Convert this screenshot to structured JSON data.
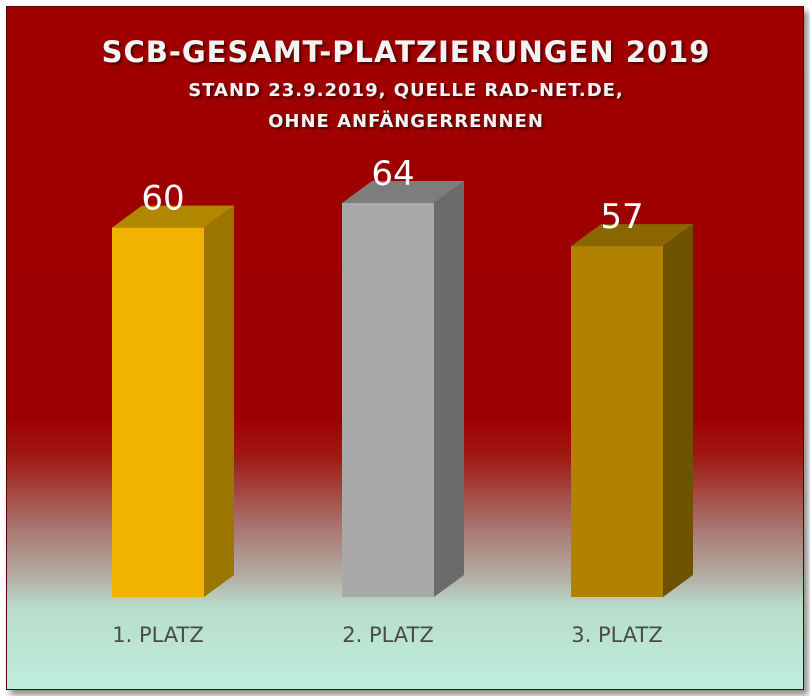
{
  "chart_data": {
    "type": "bar",
    "style": "3d-column",
    "title": "SCB-GESAMT-PLATZIERUNGEN 2019",
    "subtitle_lines": [
      "STAND 23.9.2019, QUELLE RAD-NET.DE,",
      "OHNE ANFÄNGERRENNEN"
    ],
    "categories": [
      "1. PLATZ",
      "2. PLATZ",
      "3. PLATZ"
    ],
    "values": [
      60,
      64,
      57
    ],
    "data_labels": [
      "60",
      "64",
      "57"
    ],
    "ylim": [
      0,
      64
    ],
    "grid": false,
    "legend": "none",
    "colors": [
      {
        "front": "#f0b400",
        "side": "#9a7600",
        "top": "#b18700"
      },
      {
        "front": "#a9a9a9",
        "side": "#6b6b6b",
        "top": "#7d7d7d"
      },
      {
        "front": "#b08200",
        "side": "#6e5200",
        "top": "#8a6600"
      }
    ]
  },
  "background": {
    "top_color": "#a00000",
    "bottom_color": "#bfeedd"
  }
}
